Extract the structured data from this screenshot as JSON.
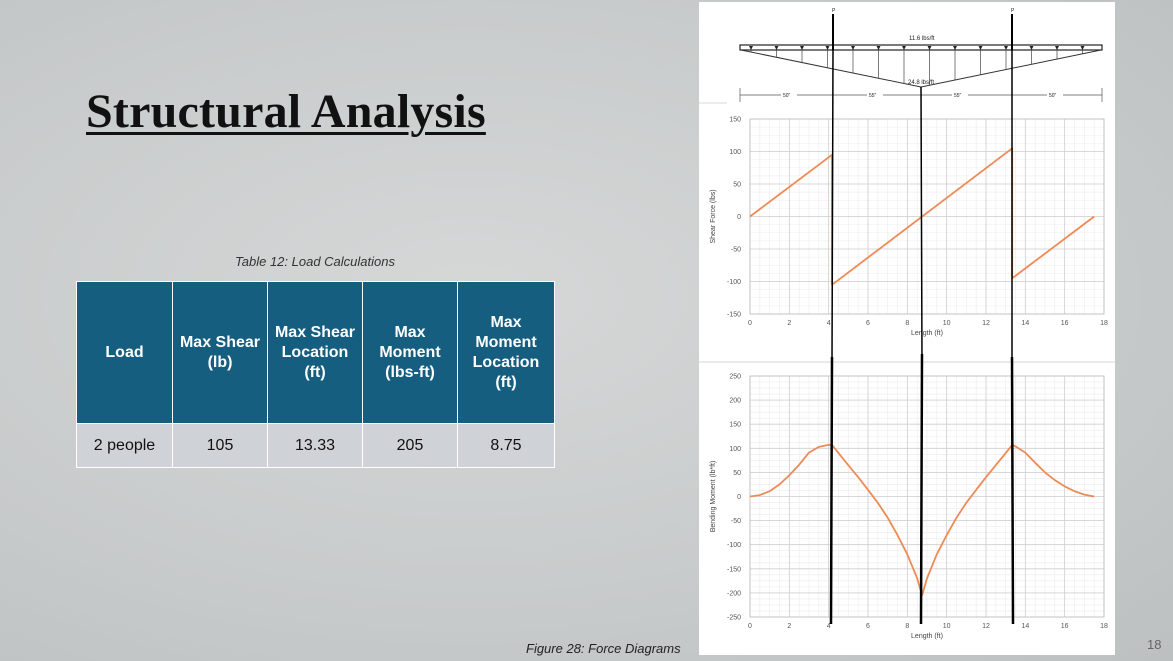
{
  "slide": {
    "title": "Structural Analysis",
    "page_number": "18"
  },
  "table": {
    "caption": "Table 12:  Load Calculations",
    "headers": [
      "Load",
      "Max Shear (lb)",
      "Max Shear Location (ft)",
      "Max Moment (lbs-ft)",
      "Max Moment Location (ft)"
    ],
    "rows": [
      [
        "2 people",
        "105",
        "13.33",
        "205",
        "8.75"
      ]
    ],
    "header_color": "#155e80",
    "row_color": "#cfd2d6"
  },
  "figure": {
    "caption": "Figure 28: Force Diagrams",
    "beam_sketch": {
      "point_load_label": "P",
      "top_load_label": "11.6 lbs/ft",
      "bottom_load_label": "24.8 lbs/ft",
      "spans": [
        "50\"",
        "55\"",
        "55\"",
        "50\""
      ]
    }
  },
  "chart_data": [
    {
      "type": "line",
      "title": "",
      "xlabel": "Length (ft)",
      "ylabel": "Shear Force (lbs)",
      "xlim": [
        0,
        18
      ],
      "ylim": [
        -150,
        150
      ],
      "x_ticks": [
        0,
        2,
        4,
        6,
        8,
        10,
        12,
        14,
        16,
        18
      ],
      "y_ticks": [
        150,
        100,
        50,
        0,
        -50,
        -100,
        -150
      ],
      "grid": true,
      "series_color": "#ee8a55",
      "x": [
        0,
        4.17,
        4.17,
        13.33,
        13.33,
        17.5
      ],
      "y": [
        0,
        95,
        -105,
        105,
        -95,
        0
      ]
    },
    {
      "type": "line",
      "title": "",
      "xlabel": "Length (ft)",
      "ylabel": "Bending Moment (lb*ft)",
      "xlim": [
        0,
        18
      ],
      "ylim": [
        -250,
        250
      ],
      "x_ticks": [
        0,
        2,
        4,
        6,
        8,
        10,
        12,
        14,
        16,
        18
      ],
      "y_ticks": [
        250,
        200,
        150,
        100,
        50,
        0,
        -50,
        -100,
        -150,
        -200,
        -250
      ],
      "grid": true,
      "series_color": "#ee8a55",
      "x": [
        0,
        0.5,
        1,
        1.5,
        2,
        2.5,
        3,
        3.5,
        4,
        4.17,
        4.5,
        5,
        5.5,
        6,
        6.5,
        7,
        7.5,
        8,
        8.5,
        8.75,
        9,
        9.5,
        10,
        10.5,
        11,
        11.5,
        12,
        12.5,
        13,
        13.33,
        13.5,
        14,
        14.5,
        15,
        15.5,
        16,
        16.5,
        17,
        17.5
      ],
      "y": [
        0,
        3,
        11,
        25,
        44,
        66,
        91,
        103,
        107,
        107,
        90,
        65,
        40,
        14,
        -13,
        -44,
        -80,
        -120,
        -170,
        -205,
        -170,
        -120,
        -80,
        -44,
        -13,
        14,
        40,
        65,
        90,
        107,
        104,
        91,
        70,
        50,
        34,
        21,
        11,
        4,
        0
      ]
    }
  ]
}
